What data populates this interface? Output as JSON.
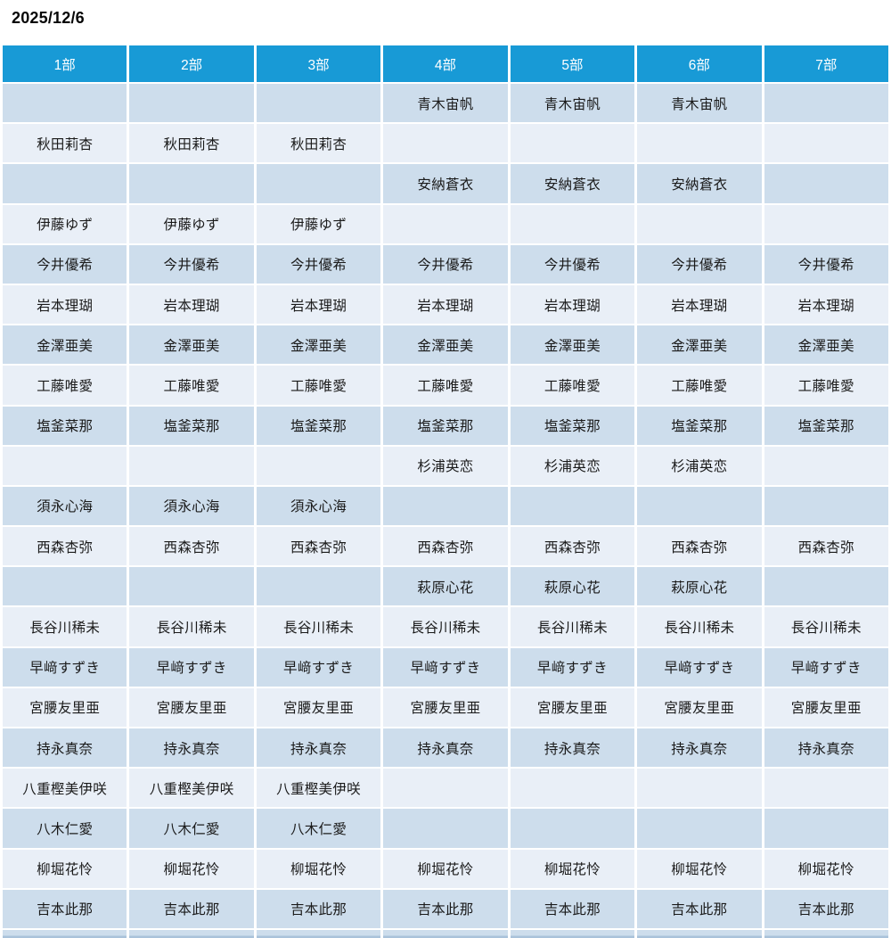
{
  "page": {
    "date": "2025/12/6"
  },
  "colors": {
    "header_bg": "#189ad6",
    "header_text": "#ffffff",
    "row_dark": "#cdddec",
    "row_light": "#e9eff7",
    "cell_text": "#1a1a1a"
  },
  "table": {
    "columns": [
      "1部",
      "2部",
      "3部",
      "4部",
      "5部",
      "6部",
      "7部"
    ],
    "rows": [
      {
        "name": "青木宙帆",
        "parts": [
          0,
          0,
          0,
          1,
          1,
          1,
          0
        ]
      },
      {
        "name": "秋田莉杏",
        "parts": [
          1,
          1,
          1,
          0,
          0,
          0,
          0
        ]
      },
      {
        "name": "安納蒼衣",
        "parts": [
          0,
          0,
          0,
          1,
          1,
          1,
          0
        ]
      },
      {
        "name": "伊藤ゆず",
        "parts": [
          1,
          1,
          1,
          0,
          0,
          0,
          0
        ]
      },
      {
        "name": "今井優希",
        "parts": [
          1,
          1,
          1,
          1,
          1,
          1,
          1
        ]
      },
      {
        "name": "岩本理瑚",
        "parts": [
          1,
          1,
          1,
          1,
          1,
          1,
          1
        ]
      },
      {
        "name": "金澤亜美",
        "parts": [
          1,
          1,
          1,
          1,
          1,
          1,
          1
        ]
      },
      {
        "name": "工藤唯愛",
        "parts": [
          1,
          1,
          1,
          1,
          1,
          1,
          1
        ]
      },
      {
        "name": "塩釜菜那",
        "parts": [
          1,
          1,
          1,
          1,
          1,
          1,
          1
        ]
      },
      {
        "name": "杉浦英恋",
        "parts": [
          0,
          0,
          0,
          1,
          1,
          1,
          0
        ]
      },
      {
        "name": "須永心海",
        "parts": [
          1,
          1,
          1,
          0,
          0,
          0,
          0
        ]
      },
      {
        "name": "西森杏弥",
        "parts": [
          1,
          1,
          1,
          1,
          1,
          1,
          1
        ]
      },
      {
        "name": "萩原心花",
        "parts": [
          0,
          0,
          0,
          1,
          1,
          1,
          0
        ]
      },
      {
        "name": "長谷川稀未",
        "parts": [
          1,
          1,
          1,
          1,
          1,
          1,
          1
        ]
      },
      {
        "name": "早﨑すずき",
        "parts": [
          1,
          1,
          1,
          1,
          1,
          1,
          1
        ]
      },
      {
        "name": "宮腰友里亜",
        "parts": [
          1,
          1,
          1,
          1,
          1,
          1,
          1
        ]
      },
      {
        "name": "持永真奈",
        "parts": [
          1,
          1,
          1,
          1,
          1,
          1,
          1
        ]
      },
      {
        "name": "八重樫美伊咲",
        "parts": [
          1,
          1,
          1,
          0,
          0,
          0,
          0
        ]
      },
      {
        "name": "八木仁愛",
        "parts": [
          1,
          1,
          1,
          0,
          0,
          0,
          0
        ]
      },
      {
        "name": "柳堀花怜",
        "parts": [
          1,
          1,
          1,
          1,
          1,
          1,
          1
        ]
      },
      {
        "name": "吉本此那",
        "parts": [
          1,
          1,
          1,
          1,
          1,
          1,
          1
        ]
      }
    ]
  }
}
